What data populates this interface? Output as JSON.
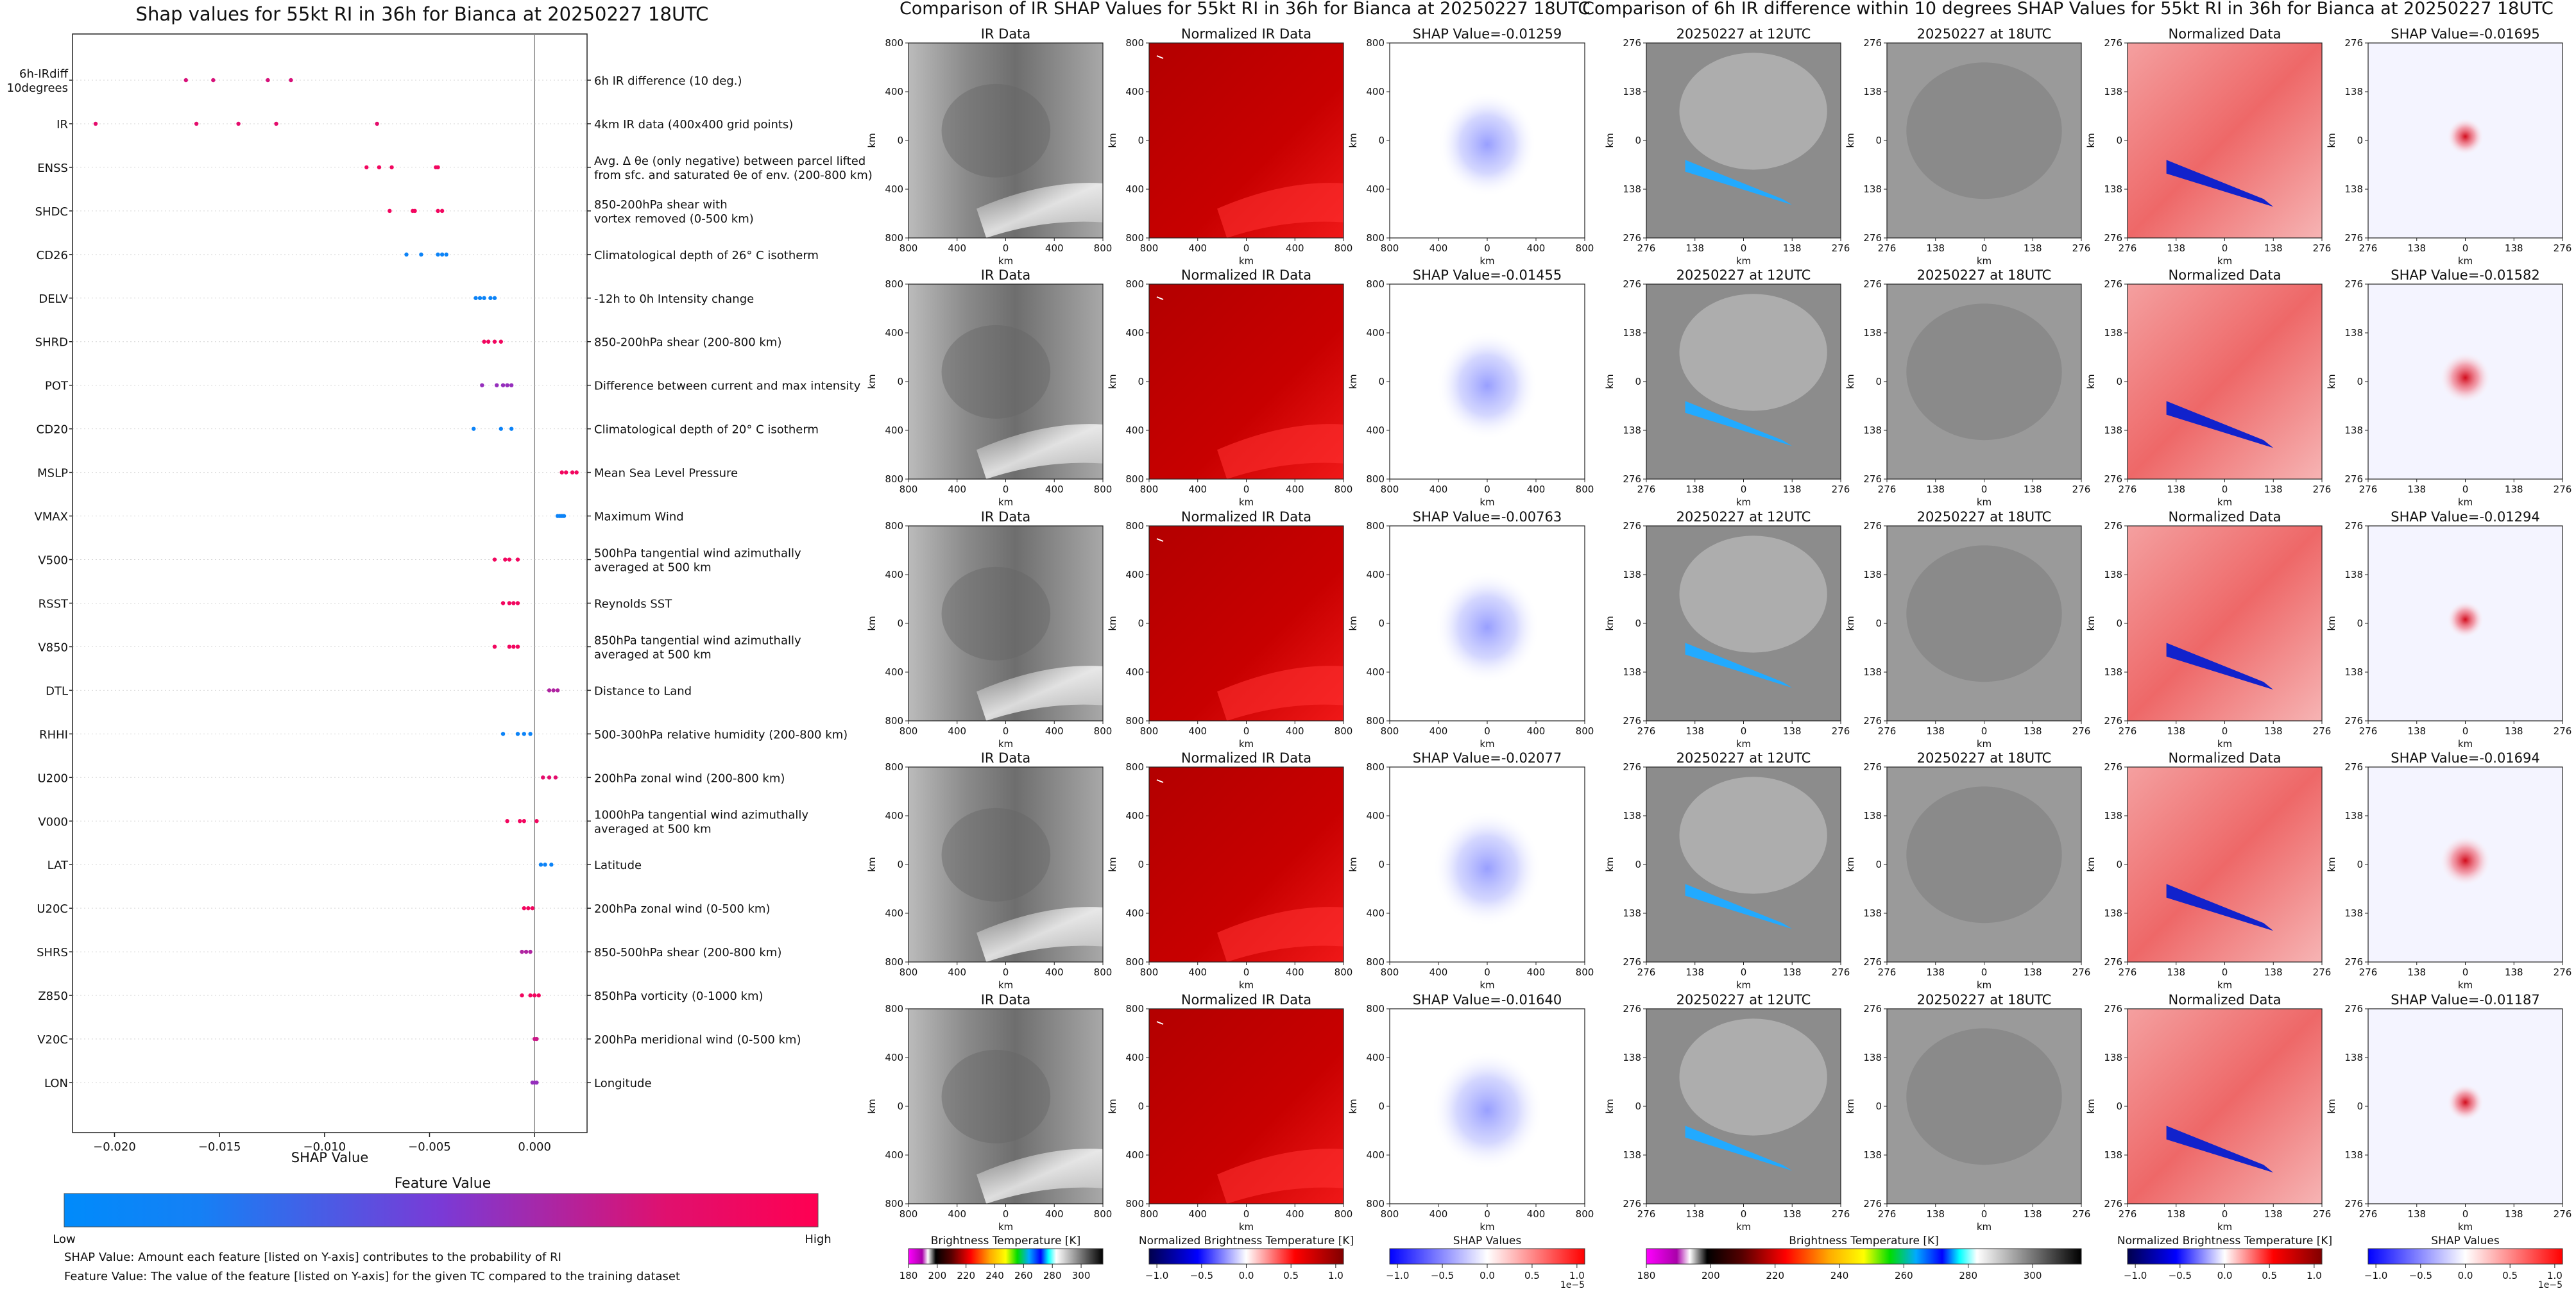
{
  "shap_panel": {
    "title": "Shap values for 55kt RI in 36h for Bianca at 20250227 18UTC",
    "xlabel": "SHAP Value",
    "colorbar_title": "Feature Value",
    "colorbar_low": "Low",
    "colorbar_high": "High",
    "notes": [
      "SHAP Value: Amount each feature [listed on Y-axis] contributes to the probability of RI",
      "Feature Value: The value of the feature [listed on Y-axis] for the given TC compared to the training dataset"
    ]
  },
  "ir_panel": {
    "title": "Comparison of IR SHAP Values for 55kt RI in 36h for Bianca at 20250227 18UTC",
    "col_titles": [
      "IR Data",
      "Normalized IR Data"
    ],
    "shap_titles": [
      "SHAP Value=-0.01259",
      "SHAP Value=-0.01455",
      "SHAP Value=-0.00763",
      "SHAP Value=-0.02077",
      "SHAP Value=-0.01640"
    ],
    "axis_label": "km",
    "x_ticks": [
      "800",
      "400",
      "0",
      "400",
      "800"
    ],
    "y_ticks": [
      "800",
      "400",
      "0",
      "400",
      "800"
    ],
    "cb_labels": [
      "Brightness Temperature [K]",
      "Normalized Brightness Temperature [K]",
      "SHAP Values"
    ],
    "cb_ticks_bt": [
      "180",
      "200",
      "220",
      "240",
      "260",
      "280",
      "300"
    ],
    "cb_ticks_norm": [
      "−1.0",
      "−0.5",
      "0.0",
      "0.5",
      "1.0"
    ],
    "cb_ticks_shap": [
      "−1.0",
      "−0.5",
      "0.0",
      "0.5",
      "1.0"
    ],
    "cb_exponent": "1e−5"
  },
  "diff_panel": {
    "title": "Comparison of 6h IR difference within 10 degrees SHAP Values for 55kt RI in 36h for Bianca at 20250227 18UTC",
    "col_titles": [
      "20250227 at 12UTC",
      "20250227 at 18UTC",
      "Normalized Data"
    ],
    "shap_titles": [
      "SHAP Value=-0.01695",
      "SHAP Value=-0.01582",
      "SHAP Value=-0.01294",
      "SHAP Value=-0.01694",
      "SHAP Value=-0.01187"
    ],
    "axis_label": "km",
    "x_ticks": [
      "276",
      "138",
      "0",
      "138",
      "276"
    ],
    "y_ticks": [
      "276",
      "138",
      "0",
      "138",
      "276"
    ],
    "cb_labels": [
      "Brightness Temperature [K]",
      "Normalized Brightness Temperature [K]",
      "SHAP Values"
    ],
    "cb_ticks_bt": [
      "180",
      "200",
      "220",
      "240",
      "260",
      "280",
      "300"
    ],
    "cb_ticks_norm": [
      "−1.0",
      "−0.5",
      "0.0",
      "0.5",
      "1.0"
    ],
    "cb_ticks_shap": [
      "−1.0",
      "−0.5",
      "0.0",
      "0.5",
      "1.0"
    ],
    "cb_exponent": "1e−5"
  },
  "colors": {
    "low": "#008bfb",
    "high": "#ff0052",
    "ir_dark": "#555555",
    "ir_light": "#d8d8d8",
    "norm_red": "#cc0000",
    "shap_blue": "#2233ff",
    "shap_red": "#e8000b"
  },
  "chart_data": [
    {
      "type": "scatter",
      "title": "Shap values for 55kt RI in 36h for Bianca at 20250227 18UTC",
      "xlabel": "SHAP Value",
      "ylabel": "",
      "xlim": [
        -0.022,
        0.0025
      ],
      "x_ticks": [
        -0.02,
        -0.015,
        -0.01,
        -0.005,
        0.0
      ],
      "x_tick_labels": [
        "−0.020",
        "−0.015",
        "−0.010",
        "−0.005",
        "0.000"
      ],
      "grid": false,
      "colorbar": "bottom",
      "features": [
        {
          "code": "6h-IRdiff\n10degrees",
          "desc": "6h IR difference (10 deg.)",
          "values": [
            -0.0166,
            -0.0153,
            -0.0127,
            -0.0116
          ],
          "colors": [
            0.85,
            0.85,
            0.85,
            0.85
          ]
        },
        {
          "code": "IR",
          "desc": "4km IR data (400x400 grid points)",
          "values": [
            -0.0209,
            -0.0161,
            -0.0141,
            -0.0123,
            -0.0075
          ],
          "colors": [
            0.9,
            0.9,
            0.9,
            0.9,
            0.9
          ]
        },
        {
          "code": "ENSS",
          "desc": "Avg. Δ θe (only negative) between parcel lifted\nfrom sfc. and saturated θe of env. (200-800 km)",
          "values": [
            -0.008,
            -0.0074,
            -0.0068,
            -0.0047,
            -0.0046
          ],
          "colors": [
            0.95,
            0.95,
            0.95,
            0.95,
            0.95
          ]
        },
        {
          "code": "SHDC",
          "desc": "850-200hPa shear with\nvortex removed (0-500 km)",
          "values": [
            -0.0069,
            -0.0058,
            -0.0057,
            -0.0046,
            -0.0044
          ],
          "colors": [
            0.95,
            0.95,
            0.95,
            0.95,
            0.95
          ]
        },
        {
          "code": "CD26",
          "desc": "Climatological depth of 26° C isotherm",
          "values": [
            -0.0061,
            -0.0054,
            -0.0046,
            -0.0044,
            -0.0042
          ],
          "colors": [
            0.05,
            0.05,
            0.05,
            0.05,
            0.05
          ]
        },
        {
          "code": "DELV",
          "desc": "-12h to 0h Intensity change",
          "values": [
            -0.0028,
            -0.0026,
            -0.0024,
            -0.0021,
            -0.0019
          ],
          "colors": [
            0.05,
            0.05,
            0.05,
            0.05,
            0.05
          ]
        },
        {
          "code": "SHRD",
          "desc": "850-200hPa shear (200-800 km)",
          "values": [
            -0.0024,
            -0.0022,
            -0.0019,
            -0.0016
          ],
          "colors": [
            0.95,
            0.95,
            0.95,
            0.95
          ]
        },
        {
          "code": "POT",
          "desc": "Difference between current and max intensity",
          "values": [
            -0.0025,
            -0.0018,
            -0.0015,
            -0.0013,
            -0.0011
          ],
          "colors": [
            0.6,
            0.6,
            0.6,
            0.6,
            0.6
          ]
        },
        {
          "code": "CD20",
          "desc": "Climatological depth of 20° C isotherm",
          "values": [
            -0.0029,
            -0.0016,
            -0.0011
          ],
          "colors": [
            0.05,
            0.05,
            0.05
          ]
        },
        {
          "code": "MSLP",
          "desc": "Mean Sea Level Pressure",
          "values": [
            0.0013,
            0.0015,
            0.0018,
            0.002
          ],
          "colors": [
            0.95,
            0.95,
            0.95,
            0.95
          ]
        },
        {
          "code": "VMAX",
          "desc": "Maximum Wind",
          "values": [
            0.0011,
            0.0012,
            0.0013,
            0.0014
          ],
          "colors": [
            0.05,
            0.05,
            0.05,
            0.05
          ]
        },
        {
          "code": "V500",
          "desc": "500hPa tangential wind azimuthally\naveraged at 500 km",
          "values": [
            -0.0019,
            -0.0014,
            -0.0012,
            -0.0008
          ],
          "colors": [
            0.95,
            0.95,
            0.95,
            0.95
          ]
        },
        {
          "code": "RSST",
          "desc": "Reynolds SST",
          "values": [
            -0.0015,
            -0.0012,
            -0.001,
            -0.0008
          ],
          "colors": [
            0.95,
            0.95,
            0.95,
            0.95
          ]
        },
        {
          "code": "V850",
          "desc": "850hPa tangential wind azimuthally\naveraged at 500 km",
          "values": [
            -0.0019,
            -0.0012,
            -0.001,
            -0.0008
          ],
          "colors": [
            0.95,
            0.95,
            0.95,
            0.95
          ]
        },
        {
          "code": "DTL",
          "desc": "Distance to Land",
          "values": [
            0.0007,
            0.0009,
            0.0011
          ],
          "colors": [
            0.7,
            0.7,
            0.7
          ]
        },
        {
          "code": "RHHI",
          "desc": "500-300hPa relative humidity (200-800 km)",
          "values": [
            -0.0015,
            -0.0008,
            -0.0005,
            -0.0002
          ],
          "colors": [
            0.05,
            0.05,
            0.05,
            0.05
          ]
        },
        {
          "code": "U200",
          "desc": "200hPa zonal wind (200-800 km)",
          "values": [
            0.0004,
            0.0007,
            0.001
          ],
          "colors": [
            0.9,
            0.9,
            0.9
          ]
        },
        {
          "code": "V000",
          "desc": "1000hPa tangential wind azimuthally\naveraged at 500 km",
          "values": [
            -0.0013,
            -0.0007,
            -0.0005,
            0.0001
          ],
          "colors": [
            0.95,
            0.95,
            0.95,
            0.95
          ]
        },
        {
          "code": "LAT",
          "desc": "Latitude",
          "values": [
            0.0003,
            0.0005,
            0.0008
          ],
          "colors": [
            0.05,
            0.05,
            0.05
          ]
        },
        {
          "code": "U20C",
          "desc": "200hPa zonal wind (0-500 km)",
          "values": [
            -0.0005,
            -0.0003,
            -0.0001
          ],
          "colors": [
            0.95,
            0.95,
            0.95
          ]
        },
        {
          "code": "SHRS",
          "desc": "850-500hPa shear (200-800 km)",
          "values": [
            -0.0006,
            -0.0004,
            -0.0002
          ],
          "colors": [
            0.7,
            0.7,
            0.7
          ]
        },
        {
          "code": "Z850",
          "desc": "850hPa vorticity (0-1000 km)",
          "values": [
            -0.0006,
            -0.0002,
            0.0,
            0.0002
          ],
          "colors": [
            0.95,
            0.95,
            0.95,
            0.95
          ]
        },
        {
          "code": "V20C",
          "desc": "200hPa meridional wind (0-500 km)",
          "values": [
            0.0,
            0.0001
          ],
          "colors": [
            0.8,
            0.8
          ]
        },
        {
          "code": "LON",
          "desc": "Longitude",
          "values": [
            -0.0001,
            0.0,
            0.0001
          ],
          "colors": [
            0.6,
            0.6,
            0.6
          ]
        }
      ]
    },
    {
      "type": "heatmap",
      "title": "Comparison of IR SHAP Values for 55kt RI in 36h for Bianca at 20250227 18UTC",
      "rows": 5,
      "shap_values": [
        -0.01259,
        -0.01455,
        -0.00763,
        -0.02077,
        -0.0164
      ],
      "xlim": [
        -800,
        800
      ],
      "ylim": [
        -800,
        800
      ]
    },
    {
      "type": "heatmap",
      "title": "Comparison of 6h IR difference within 10 degrees SHAP Values for 55kt RI in 36h for Bianca at 20250227 18UTC",
      "rows": 5,
      "shap_values": [
        -0.01695,
        -0.01582,
        -0.01294,
        -0.01694,
        -0.01187
      ],
      "xlim": [
        -276,
        276
      ],
      "ylim": [
        -276,
        276
      ]
    }
  ]
}
